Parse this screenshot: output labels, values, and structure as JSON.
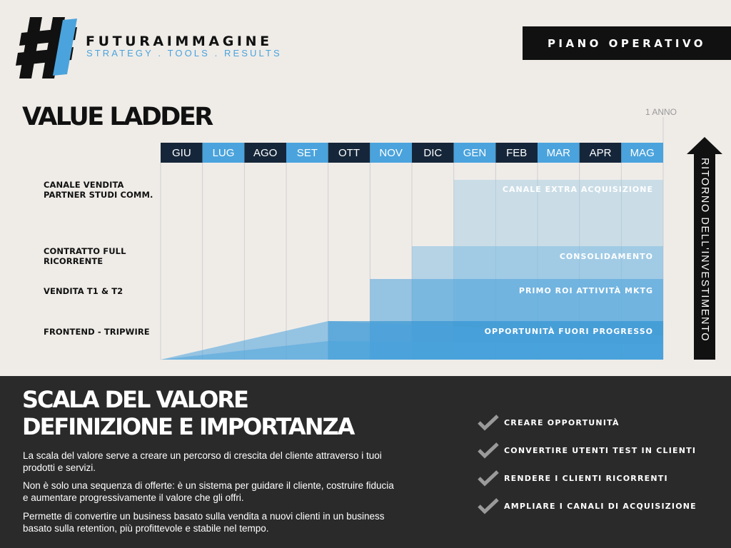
{
  "brand": {
    "name": "FUTURAIMMAGINE",
    "tagline": "STRATEGY . TOOLS . RESULTS",
    "colors": {
      "dark": "#111111",
      "blue": "#4aa3dc"
    }
  },
  "header": {
    "badge": "PIANO OPERATIVO"
  },
  "chart": {
    "title": "VALUE LADDER",
    "horizon_label": "1 ANNO",
    "months": [
      "GIU",
      "LUG",
      "AGO",
      "SET",
      "OTT",
      "NOV",
      "DIC",
      "GEN",
      "FEB",
      "MAR",
      "APR",
      "MAG"
    ],
    "row_labels": [
      {
        "line1": "CANALE VENDITA",
        "line2": "PARTNER STUDI COMM."
      },
      {
        "line1": "CONTRATTO FULL",
        "line2": "RICORRENTE"
      },
      {
        "line1": "VENDITA T1 & T2",
        "line2": ""
      },
      {
        "line1": "FRONTEND - TRIPWIRE",
        "line2": ""
      }
    ],
    "tier_labels": [
      "CANALE EXTRA ACQUISIZIONE",
      "CONSOLIDAMENTO",
      "PRIMO ROI ATTIVITÀ MKTG",
      "OPPORTUNITÀ FUORI PROGRESSO"
    ],
    "roi_label": "RITORNO DELL'INVESTIMENTO"
  },
  "chart_data": {
    "type": "area",
    "categories": [
      "GIU",
      "LUG",
      "AGO",
      "SET",
      "OTT",
      "NOV",
      "DIC",
      "GEN",
      "FEB",
      "MAR",
      "APR",
      "MAG"
    ],
    "series": [
      {
        "name": "FRONTEND - TRIPWIRE",
        "start_month": "OTT",
        "level": 1
      },
      {
        "name": "VENDITA T1 & T2",
        "start_month": "NOV",
        "level": 2
      },
      {
        "name": "CONTRATTO FULL RICORRENTE",
        "start_month": "DIC",
        "level": 3
      },
      {
        "name": "CANALE VENDITA PARTNER STUDI COMM.",
        "start_month": "GEN",
        "level": 4
      }
    ],
    "xlabel": "1 ANNO",
    "ylabel": "RITORNO DELL'INVESTIMENTO",
    "colors": [
      "#2a8fd0",
      "#4aa3dc",
      "#6fb6e2",
      "#8fc4e6"
    ]
  },
  "section": {
    "title_line1": "SCALA DEL VALORE",
    "title_line2": "DEFINIZIONE E IMPORTANZA",
    "paragraphs": [
      "La scala del valore serve a creare un percorso di crescita del cliente attraverso i tuoi prodotti e servizi.",
      "Non è solo una sequenza di offerte: è un sistema per guidare il cliente, costruire fiducia e aumentare progressivamente il valore che gli offri.",
      "Permette di convertire un business basato sulla vendita a nuovi clienti in un business basato sulla retention, più profittevole e stabile nel tempo."
    ],
    "checklist": [
      "CREARE OPPORTUNITÀ",
      "CONVERTIRE UTENTI TEST IN CLIENTI",
      "RENDERE I CLIENTI RICORRENTI",
      "AMPLIARE I CANALI DI ACQUISIZIONE"
    ]
  }
}
